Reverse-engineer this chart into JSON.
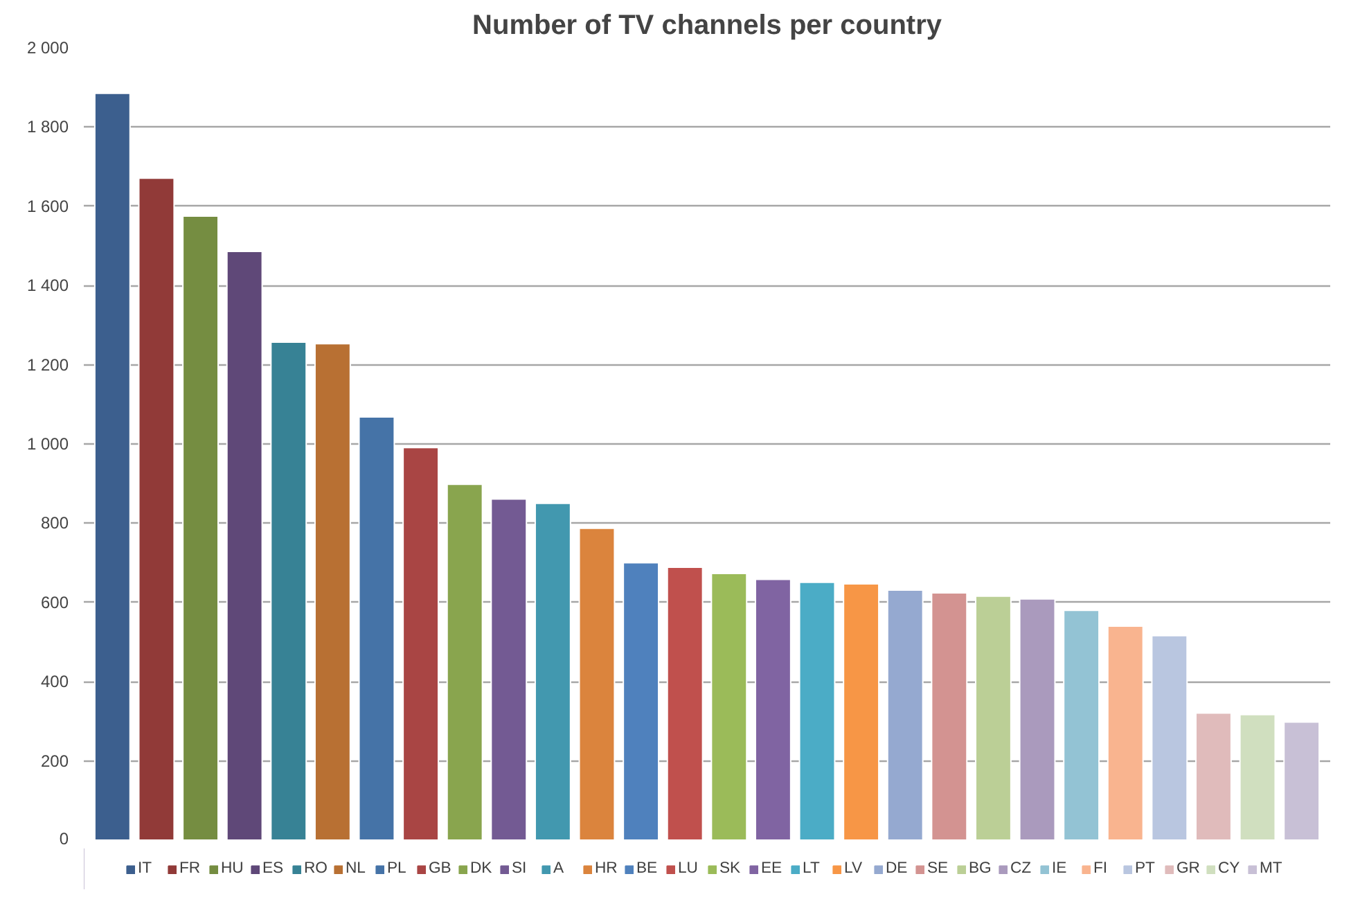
{
  "chart_data": {
    "type": "bar",
    "title": "Number of TV channels per country",
    "categories": [
      null
    ],
    "series": [
      {
        "name": "IT",
        "color": "#3c5f8e",
        "values": [
          1885
        ]
      },
      {
        "name": "FR",
        "color": "#913a38",
        "values": [
          1671
        ]
      },
      {
        "name": "HU",
        "color": "#758d41",
        "values": [
          1575
        ]
      },
      {
        "name": "ES",
        "color": "#5f4878",
        "values": [
          1486
        ]
      },
      {
        "name": "RO",
        "color": "#378295",
        "values": [
          1257
        ]
      },
      {
        "name": "NL",
        "color": "#b87033",
        "values": [
          1253
        ]
      },
      {
        "name": "PL",
        "color": "#4573a7",
        "values": [
          1068
        ]
      },
      {
        "name": "GB",
        "color": "#a94544",
        "values": [
          991
        ]
      },
      {
        "name": "DK",
        "color": "#89a54e",
        "values": [
          898
        ]
      },
      {
        "name": "SI",
        "color": "#735a93",
        "values": [
          861
        ]
      },
      {
        "name": "A",
        "color": "#4298af",
        "values": [
          850
        ]
      },
      {
        "name": "HR",
        "color": "#db843d",
        "values": [
          787
        ]
      },
      {
        "name": "BE",
        "color": "#4f81bd",
        "values": [
          700
        ]
      },
      {
        "name": "LU",
        "color": "#c0504d",
        "values": [
          689
        ]
      },
      {
        "name": "SK",
        "color": "#9bbb59",
        "values": [
          673
        ]
      },
      {
        "name": "EE",
        "color": "#8064a2",
        "values": [
          658
        ]
      },
      {
        "name": "LT",
        "color": "#4bacc6",
        "values": [
          651
        ]
      },
      {
        "name": "LV",
        "color": "#f79646",
        "values": [
          647
        ]
      },
      {
        "name": "DE",
        "color": "#95a9d0",
        "values": [
          631
        ]
      },
      {
        "name": "SE",
        "color": "#d39391",
        "values": [
          624
        ]
      },
      {
        "name": "BG",
        "color": "#bbcf96",
        "values": [
          616
        ]
      },
      {
        "name": "CZ",
        "color": "#aa9abd",
        "values": [
          609
        ]
      },
      {
        "name": "IE",
        "color": "#93c3d4",
        "values": [
          580
        ]
      },
      {
        "name": "FI",
        "color": "#f9b48f",
        "values": [
          540
        ]
      },
      {
        "name": "PT",
        "color": "#b9c6e0",
        "values": [
          516
        ]
      },
      {
        "name": "GR",
        "color": "#e0bbbb",
        "values": [
          321
        ]
      },
      {
        "name": "CY",
        "color": "#d0dfbf",
        "values": [
          317
        ]
      },
      {
        "name": "MT",
        "color": "#c8c0d6",
        "values": [
          298
        ]
      }
    ],
    "ylim": [
      0,
      2000
    ],
    "yticks": [
      0,
      200,
      400,
      600,
      800,
      {
        "value": 1000,
        "label": "1 000"
      },
      {
        "value": 1200,
        "label": "1 200"
      },
      {
        "value": 1400,
        "label": "1 400"
      },
      {
        "value": 1600,
        "label": "1 600"
      },
      {
        "value": 1800,
        "label": "1 800"
      },
      {
        "value": 2000,
        "label": "2 000"
      }
    ],
    "grid": "y",
    "legend": "bottom",
    "tick_labels": "y"
  }
}
